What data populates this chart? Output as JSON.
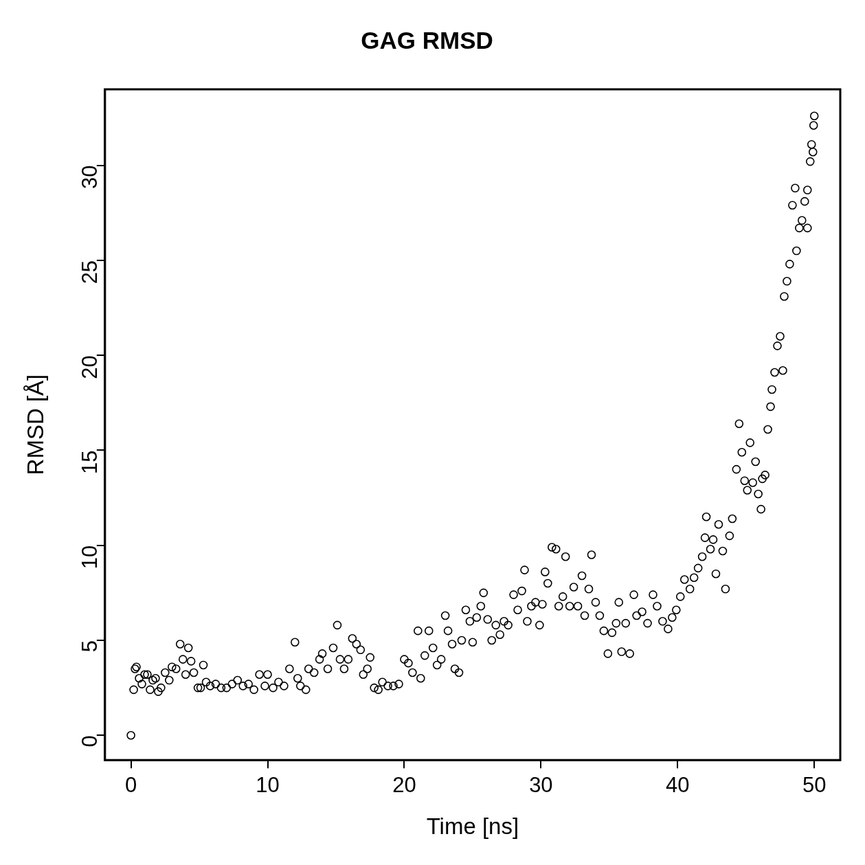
{
  "chart_data": {
    "type": "scatter",
    "title": "GAG RMSD",
    "xlabel": "Time [ns]",
    "ylabel": "RMSD [Å]",
    "marker": "circle",
    "color": "#000000",
    "xlim": [
      -1.9,
      51.9
    ],
    "ylim": [
      -1.3,
      34
    ],
    "xticks": [
      0,
      10,
      20,
      30,
      40,
      50
    ],
    "yticks": [
      0,
      5,
      10,
      15,
      20,
      25,
      30
    ],
    "x": [
      0,
      0.2,
      0.3,
      0.4,
      0.6,
      0.8,
      1.0,
      1.2,
      1.4,
      1.6,
      1.8,
      2.0,
      2.2,
      2.5,
      2.8,
      3.0,
      3.3,
      3.6,
      3.8,
      4.0,
      4.2,
      4.4,
      4.6,
      4.9,
      5.1,
      5.3,
      5.5,
      5.8,
      6.2,
      6.6,
      7.0,
      7.4,
      7.8,
      8.2,
      8.6,
      9.0,
      9.4,
      9.8,
      10.0,
      10.4,
      10.8,
      11.2,
      11.6,
      12.0,
      12.2,
      12.4,
      12.8,
      13.0,
      13.4,
      13.8,
      14.0,
      14.4,
      14.8,
      15.1,
      15.3,
      15.6,
      15.9,
      16.2,
      16.5,
      16.8,
      17.0,
      17.3,
      17.5,
      17.8,
      18.1,
      18.4,
      18.8,
      19.2,
      19.6,
      20.0,
      20.3,
      20.6,
      21.0,
      21.2,
      21.5,
      21.8,
      22.1,
      22.4,
      22.7,
      23.0,
      23.2,
      23.5,
      23.7,
      24.0,
      24.2,
      24.5,
      24.8,
      25.0,
      25.3,
      25.6,
      25.8,
      26.1,
      26.4,
      26.7,
      27.0,
      27.3,
      27.6,
      28.0,
      28.3,
      28.6,
      28.8,
      29.0,
      29.3,
      29.6,
      29.9,
      30.1,
      30.3,
      30.5,
      30.8,
      31.1,
      31.3,
      31.6,
      31.8,
      32.1,
      32.4,
      32.7,
      33.0,
      33.2,
      33.5,
      33.7,
      34.0,
      34.3,
      34.6,
      34.9,
      35.2,
      35.5,
      35.7,
      35.9,
      36.2,
      36.5,
      36.8,
      37.0,
      37.4,
      37.8,
      38.2,
      38.5,
      38.9,
      39.3,
      39.6,
      39.9,
      40.2,
      40.5,
      40.9,
      41.2,
      41.5,
      41.8,
      42.0,
      42.1,
      42.4,
      42.6,
      42.8,
      43.0,
      43.3,
      43.5,
      43.8,
      44.0,
      44.3,
      44.5,
      44.7,
      44.9,
      45.1,
      45.3,
      45.5,
      45.7,
      45.9,
      46.1,
      46.2,
      46.4,
      46.6,
      46.8,
      46.9,
      47.1,
      47.3,
      47.5,
      47.7,
      47.8,
      48.0,
      48.2,
      48.4,
      48.6,
      48.7,
      48.9,
      49.1,
      49.3,
      49.5,
      49.5,
      49.7,
      49.8,
      49.9,
      50.0,
      49.95
    ],
    "values": [
      0,
      2.4,
      3.5,
      3.6,
      3.0,
      2.7,
      3.2,
      3.2,
      2.4,
      2.9,
      3.0,
      2.3,
      2.5,
      3.3,
      2.9,
      3.6,
      3.5,
      4.8,
      4.0,
      3.2,
      4.6,
      3.9,
      3.3,
      2.5,
      2.5,
      3.7,
      2.8,
      2.6,
      2.7,
      2.5,
      2.5,
      2.7,
      2.9,
      2.6,
      2.7,
      2.4,
      3.2,
      2.6,
      3.2,
      2.5,
      2.8,
      2.6,
      3.5,
      4.9,
      3.0,
      2.6,
      2.4,
      3.5,
      3.3,
      4.0,
      4.3,
      3.5,
      4.6,
      5.8,
      4.0,
      3.5,
      4.0,
      5.1,
      4.8,
      4.5,
      3.2,
      3.5,
      4.1,
      2.5,
      2.4,
      2.8,
      2.6,
      2.6,
      2.7,
      4.0,
      3.8,
      3.3,
      5.5,
      3.0,
      4.2,
      5.5,
      4.6,
      3.7,
      4.0,
      6.3,
      5.5,
      4.8,
      3.5,
      3.3,
      5.0,
      6.6,
      6.0,
      4.9,
      6.2,
      6.8,
      7.5,
      6.1,
      5.0,
      5.8,
      5.3,
      6.0,
      5.8,
      7.4,
      6.6,
      7.6,
      8.7,
      6.0,
      6.8,
      7.0,
      5.8,
      6.9,
      8.6,
      8.0,
      9.9,
      9.8,
      6.8,
      7.3,
      9.4,
      6.8,
      7.8,
      6.8,
      8.4,
      6.3,
      7.7,
      9.5,
      7.0,
      6.3,
      5.5,
      4.3,
      5.4,
      5.9,
      7.0,
      4.4,
      5.9,
      4.3,
      7.4,
      6.3,
      6.5,
      5.9,
      7.4,
      6.8,
      6.0,
      5.6,
      6.2,
      6.6,
      7.3,
      8.2,
      7.7,
      8.3,
      8.8,
      9.4,
      10.4,
      11.5,
      9.8,
      10.3,
      8.5,
      11.1,
      9.7,
      7.7,
      10.5,
      11.4,
      14.0,
      16.4,
      14.9,
      13.4,
      12.9,
      15.4,
      13.3,
      14.4,
      12.7,
      11.9,
      13.5,
      13.7,
      16.1,
      17.3,
      18.2,
      19.1,
      20.5,
      21.0,
      19.2,
      23.1,
      23.9,
      24.8,
      27.9,
      28.8,
      25.5,
      26.7,
      27.1,
      28.1,
      28.7,
      26.7,
      30.2,
      31.1,
      30.7,
      32.6,
      32.1
    ]
  }
}
